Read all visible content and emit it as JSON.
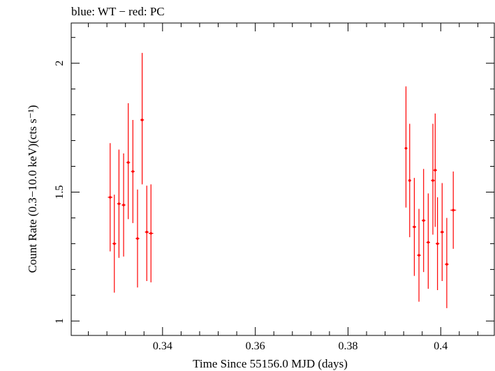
{
  "chart_data": {
    "type": "scatter",
    "title": "blue: WT − red: PC",
    "xlabel": "Time Since 55156.0 MJD (days)",
    "ylabel": "Count Rate (0.3−10.0 keV)(cts s⁻¹)",
    "xlim": [
      0.3203,
      0.4117
    ],
    "ylim": [
      0.944,
      2.156
    ],
    "x_ticks": [
      0.34,
      0.36,
      0.38,
      0.4
    ],
    "x_tick_labels": [
      "0.34",
      "0.36",
      "0.38",
      "0.4"
    ],
    "y_ticks": [
      1,
      1.5,
      2
    ],
    "y_tick_labels": [
      "1",
      "1.5",
      "2"
    ],
    "grid": false,
    "series": [
      {
        "color": "#ff0000",
        "points": [
          {
            "x": 0.3287,
            "xerr": 0.0005,
            "y": 1.48,
            "yerr_lo": 0.21,
            "yerr_hi": 0.21
          },
          {
            "x": 0.3296,
            "xerr": 0.0004,
            "y": 1.3,
            "yerr_lo": 0.19,
            "yerr_hi": 0.19
          },
          {
            "x": 0.3306,
            "xerr": 0.0004,
            "y": 1.455,
            "yerr_lo": 0.21,
            "yerr_hi": 0.21
          },
          {
            "x": 0.3316,
            "xerr": 0.0004,
            "y": 1.45,
            "yerr_lo": 0.2,
            "yerr_hi": 0.2
          },
          {
            "x": 0.3326,
            "xerr": 0.0004,
            "y": 1.615,
            "yerr_lo": 0.22,
            "yerr_hi": 0.23
          },
          {
            "x": 0.3336,
            "xerr": 0.0004,
            "y": 1.58,
            "yerr_lo": 0.2,
            "yerr_hi": 0.2
          },
          {
            "x": 0.3346,
            "xerr": 0.0004,
            "y": 1.32,
            "yerr_lo": 0.19,
            "yerr_hi": 0.19
          },
          {
            "x": 0.3356,
            "xerr": 0.0004,
            "y": 1.78,
            "yerr_lo": 0.25,
            "yerr_hi": 0.26
          },
          {
            "x": 0.3366,
            "xerr": 0.0004,
            "y": 1.345,
            "yerr_lo": 0.19,
            "yerr_hi": 0.18
          },
          {
            "x": 0.3375,
            "xerr": 0.0005,
            "y": 1.34,
            "yerr_lo": 0.19,
            "yerr_hi": 0.19
          },
          {
            "x": 0.3925,
            "xerr": 0.0003,
            "y": 1.67,
            "yerr_lo": 0.23,
            "yerr_hi": 0.24
          },
          {
            "x": 0.3933,
            "xerr": 0.0003,
            "y": 1.545,
            "yerr_lo": 0.22,
            "yerr_hi": 0.22
          },
          {
            "x": 0.3943,
            "xerr": 0.0004,
            "y": 1.365,
            "yerr_lo": 0.19,
            "yerr_hi": 0.19
          },
          {
            "x": 0.3953,
            "xerr": 0.0004,
            "y": 1.255,
            "yerr_lo": 0.18,
            "yerr_hi": 0.18
          },
          {
            "x": 0.3963,
            "xerr": 0.0004,
            "y": 1.39,
            "yerr_lo": 0.2,
            "yerr_hi": 0.2
          },
          {
            "x": 0.3973,
            "xerr": 0.0004,
            "y": 1.305,
            "yerr_lo": 0.18,
            "yerr_hi": 0.19
          },
          {
            "x": 0.3983,
            "xerr": 0.0004,
            "y": 1.545,
            "yerr_lo": 0.21,
            "yerr_hi": 0.22
          },
          {
            "x": 0.3988,
            "xerr": 0.0004,
            "y": 1.585,
            "yerr_lo": 0.22,
            "yerr_hi": 0.22
          },
          {
            "x": 0.3993,
            "xerr": 0.0004,
            "y": 1.3,
            "yerr_lo": 0.18,
            "yerr_hi": 0.18
          },
          {
            "x": 0.4003,
            "xerr": 0.0004,
            "y": 1.345,
            "yerr_lo": 0.19,
            "yerr_hi": 0.19
          },
          {
            "x": 0.4013,
            "xerr": 0.0004,
            "y": 1.22,
            "yerr_lo": 0.17,
            "yerr_hi": 0.18
          },
          {
            "x": 0.4027,
            "xerr": 0.0006,
            "y": 1.43,
            "yerr_lo": 0.15,
            "yerr_hi": 0.15
          }
        ]
      }
    ]
  }
}
